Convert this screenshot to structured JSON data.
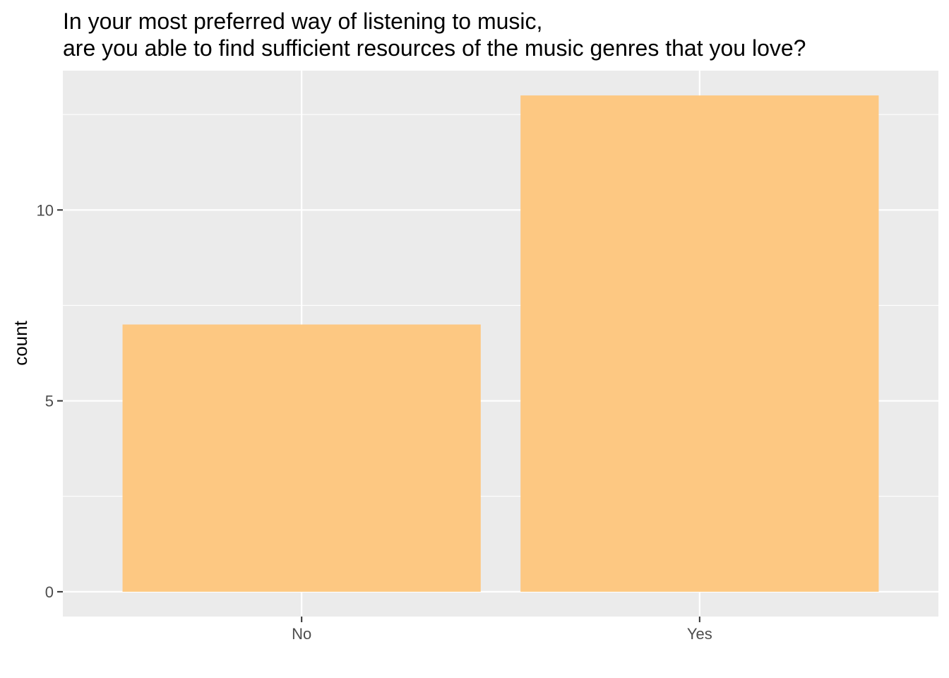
{
  "chart_data": {
    "type": "bar",
    "title": [
      "In your most preferred way of listening to music,",
      "are you able to find sufficient resources of the music genres that you love?"
    ],
    "xlabel": "",
    "ylabel": "count",
    "categories": [
      "No",
      "Yes"
    ],
    "values": [
      7,
      13
    ],
    "ylim": [
      -0.65,
      13.65
    ],
    "y_ticks": [
      0,
      5,
      10
    ],
    "y_tick_labels": [
      "0",
      "5",
      "10"
    ],
    "grid": true,
    "colors": {
      "bar": "#FDC882",
      "panel": "#EBEBEB",
      "grid": "#FFFFFF",
      "tick": "#333333"
    }
  }
}
